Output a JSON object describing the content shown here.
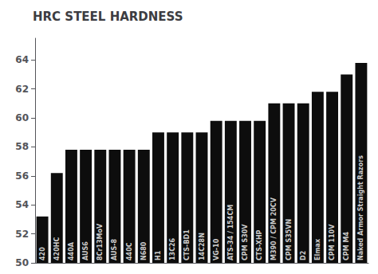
{
  "chart_data": {
    "type": "bar",
    "title": "HRC STEEL HARDNESS",
    "categories": [
      "420",
      "420HC",
      "440A",
      "AUS6",
      "8Cr13MoV",
      "AUS-8",
      "440C",
      "N680",
      "H1",
      "13C26",
      "CTS-BD1",
      "14C28N",
      "VG-10",
      "ATS-34 / 154CM",
      "CPM S30V",
      "CTS-XHP",
      "M390 / CPM 20CV",
      "CPM S35VN",
      "D2",
      "Elmax",
      "CPM 110V",
      "CPM M4",
      "Naked Armor Straight Razors"
    ],
    "values": [
      53.2,
      56.2,
      57.8,
      57.8,
      57.8,
      57.8,
      57.8,
      57.8,
      59.0,
      59.0,
      59.0,
      59.0,
      59.8,
      59.8,
      59.8,
      59.8,
      61.0,
      61.0,
      61.0,
      61.8,
      61.8,
      63.0,
      63.8
    ],
    "color": "#0d0d0d",
    "ylim": [
      50,
      65.5
    ],
    "yticks": [
      50,
      52,
      54,
      56,
      58,
      60,
      62,
      64
    ],
    "grid": false,
    "tick_labels": "y"
  }
}
